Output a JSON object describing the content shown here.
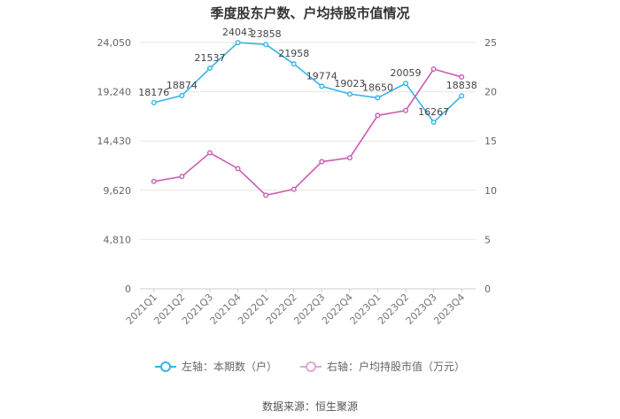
{
  "chart_data": {
    "type": "line",
    "title": "季度股东户数、户均持股市值情况",
    "categories": [
      "2021Q1",
      "2021Q2",
      "2021Q3",
      "2021Q4",
      "2022Q1",
      "2022Q2",
      "2022Q3",
      "2022Q4",
      "2023Q1",
      "2023Q2",
      "2023Q3",
      "2023Q4"
    ],
    "series": [
      {
        "name": "左轴：本期数（户）",
        "axis": "left",
        "color": "#36b4e6",
        "values": [
          18176,
          18874,
          21537,
          24043,
          23858,
          21958,
          19774,
          19023,
          18650,
          20059,
          16267,
          18838
        ],
        "data_labels": [
          "18176",
          "18874",
          "21537",
          "24043",
          "23858",
          "21958",
          "19774",
          "19023",
          "18650",
          "20059",
          "16267",
          "18838"
        ]
      },
      {
        "name": "右轴：户均持股市值（万元）",
        "axis": "right",
        "color": "#cc5bb4",
        "values": [
          10.9,
          11.4,
          13.8,
          12.2,
          9.5,
          10.1,
          12.9,
          13.3,
          17.6,
          18.1,
          22.3,
          21.5
        ]
      }
    ],
    "y_left": {
      "ylim": [
        0,
        24050
      ],
      "ticks": [
        "0",
        "4,810",
        "9,620",
        "14,430",
        "19,240",
        "24,050"
      ]
    },
    "y_right": {
      "ylim": [
        0,
        25
      ],
      "ticks": [
        "0",
        "5",
        "10",
        "15",
        "20",
        "25"
      ]
    },
    "grid": true,
    "legend_position": "bottom"
  },
  "source_text": "数据来源：恒生聚源"
}
